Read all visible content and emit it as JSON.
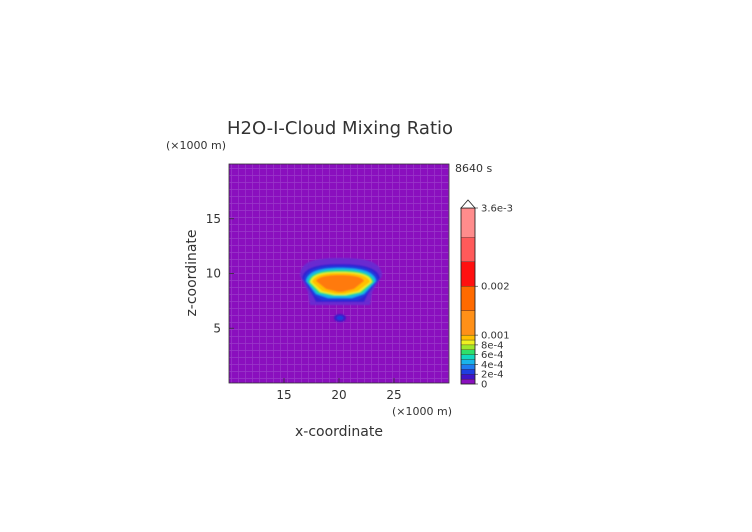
{
  "chart_data": {
    "type": "heatmap",
    "title": "H2O-I-Cloud Mixing Ratio",
    "time_label": "8640 s",
    "x_unit": "(×1000 m)",
    "y_unit": "(×1000 m)",
    "xlabel": "x-coordinate",
    "ylabel": "z-coordinate",
    "xlim": [
      10,
      30
    ],
    "ylim": [
      0,
      20
    ],
    "x_ticks": [
      15,
      20,
      25
    ],
    "y_ticks": [
      5,
      10,
      15
    ],
    "colorbar": {
      "min": 0,
      "max": 0.0036,
      "tick_values": [
        0,
        0.0002,
        0.0004,
        0.0006,
        0.0008,
        0.001,
        0.002,
        0.0036
      ],
      "tick_labels": [
        "0",
        "2e-4",
        "4e-4",
        "6e-4",
        "8e-4",
        "0.001",
        "0.002",
        "3.6e-3"
      ],
      "levels": [
        0,
        0.0001,
        0.0002,
        0.0003,
        0.0004,
        0.0005,
        0.0006,
        0.0007,
        0.0008,
        0.0009,
        0.001,
        0.0015,
        0.002,
        0.0025,
        0.003,
        0.0036
      ],
      "colors": [
        "#8a0fbe",
        "#4013c8",
        "#1e3ee0",
        "#1f7cf0",
        "#19b4ea",
        "#11d8c0",
        "#2fe06a",
        "#9fe82a",
        "#f0f020",
        "#ffc000",
        "#ff9018",
        "#ff6a00",
        "#ff1010",
        "#ff5a5a",
        "#ff8c8c",
        "#ffb4b4"
      ],
      "extend_max": true
    },
    "background_value": 0,
    "features": [
      {
        "name": "main-cloud",
        "x_min": 17,
        "x_max": 23,
        "z_min": 8,
        "z_max": 10.8,
        "max_value": 0.0012
      },
      {
        "name": "small-cell",
        "x": 20,
        "z": 6,
        "max_value": 0.0002
      }
    ]
  },
  "colors": {
    "background_field": "#8a0fbe",
    "axis": "#333333"
  }
}
